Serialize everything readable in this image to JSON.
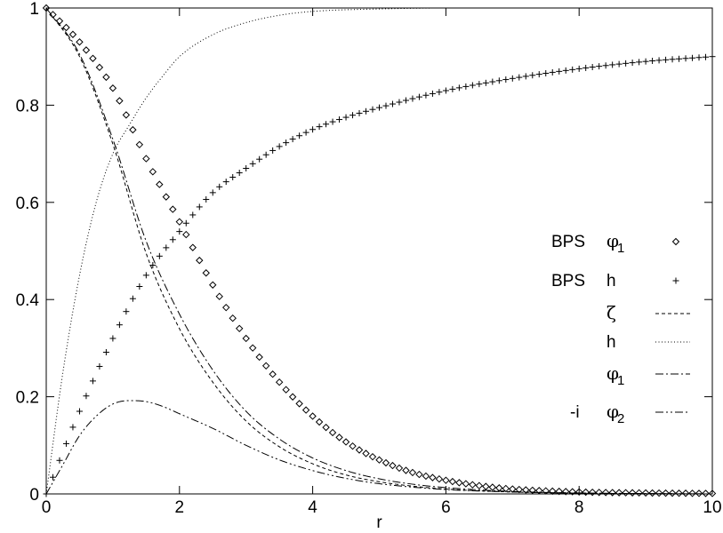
{
  "chart_data": {
    "type": "line",
    "title": "",
    "xlabel": "r",
    "ylabel": "",
    "xlim": [
      0,
      10
    ],
    "ylim": [
      0,
      1
    ],
    "grid": false,
    "legend_position": "right",
    "x_ticks": [
      "0",
      "2",
      "4",
      "6",
      "8",
      "10"
    ],
    "y_ticks": [
      "0",
      "0.2",
      "0.4",
      "0.6",
      "0.8",
      "1"
    ],
    "series": [
      {
        "name": "BPS φ1",
        "legend_prefix": "BPS",
        "legend_symbol": "φ",
        "legend_sub": "1",
        "style": "diamond",
        "x": [
          0.0,
          0.5,
          1.0,
          1.5,
          2.0,
          2.5,
          3.0,
          3.5,
          4.0,
          4.5,
          5.0,
          5.5,
          6.0,
          6.5,
          7.0,
          8.0,
          9.0,
          10.0
        ],
        "y": [
          1.0,
          0.93,
          0.835,
          0.69,
          0.56,
          0.43,
          0.32,
          0.23,
          0.16,
          0.107,
          0.07,
          0.044,
          0.028,
          0.017,
          0.01,
          0.004,
          0.002,
          0.001
        ]
      },
      {
        "name": "BPS h",
        "legend_prefix": "BPS",
        "legend_symbol": "h",
        "legend_sub": "",
        "style": "plus",
        "x": [
          0.0,
          0.5,
          1.0,
          1.5,
          2.0,
          2.5,
          3.0,
          3.5,
          4.0,
          4.5,
          5.0,
          6.0,
          7.0,
          8.0,
          9.0,
          10.0
        ],
        "y": [
          0.0,
          0.17,
          0.32,
          0.45,
          0.54,
          0.62,
          0.67,
          0.715,
          0.75,
          0.775,
          0.795,
          0.83,
          0.855,
          0.875,
          0.89,
          0.9
        ]
      },
      {
        "name": "ζ",
        "legend_prefix": "",
        "legend_symbol": "ζ",
        "legend_sub": "",
        "style": "dash",
        "x": [
          0.0,
          0.5,
          1.0,
          1.5,
          2.0,
          2.5,
          3.0,
          3.5,
          4.0,
          4.5,
          5.0,
          5.5,
          6.0,
          7.0,
          8.0,
          10.0
        ],
        "y": [
          1.0,
          0.9,
          0.72,
          0.495,
          0.34,
          0.23,
          0.15,
          0.097,
          0.062,
          0.039,
          0.025,
          0.016,
          0.01,
          0.004,
          0.0015,
          0.0
        ]
      },
      {
        "name": "h",
        "legend_prefix": "",
        "legend_symbol": "h",
        "legend_sub": "",
        "style": "dot",
        "x": [
          0.0,
          0.25,
          0.5,
          0.75,
          1.0,
          1.25,
          1.5,
          1.75,
          2.0,
          2.5,
          3.0,
          3.5,
          4.0,
          5.0,
          6.0,
          10.0
        ],
        "y": [
          0.0,
          0.25,
          0.45,
          0.6,
          0.7,
          0.76,
          0.815,
          0.86,
          0.9,
          0.945,
          0.97,
          0.985,
          0.993,
          0.998,
          1.0,
          1.0
        ]
      },
      {
        "name": "φ1",
        "legend_prefix": "",
        "legend_symbol": "φ",
        "legend_sub": "1",
        "style": "dashdot",
        "x": [
          0.0,
          0.5,
          1.0,
          1.5,
          2.0,
          2.5,
          3.0,
          3.5,
          4.0,
          4.5,
          5.0,
          5.5,
          6.0,
          7.0,
          8.0,
          10.0
        ],
        "y": [
          1.0,
          0.905,
          0.73,
          0.52,
          0.37,
          0.255,
          0.17,
          0.113,
          0.074,
          0.048,
          0.031,
          0.02,
          0.013,
          0.005,
          0.002,
          0.0
        ]
      },
      {
        "name": "-i φ2",
        "legend_prefix": "-i",
        "legend_symbol": "φ",
        "legend_sub": "2",
        "style": "dashdotdot",
        "x": [
          0.0,
          0.25,
          0.5,
          0.75,
          1.0,
          1.25,
          1.5,
          1.75,
          2.0,
          2.5,
          3.0,
          3.5,
          4.0,
          4.5,
          5.0,
          6.0,
          7.0,
          8.0,
          10.0
        ],
        "y": [
          0.0,
          0.06,
          0.12,
          0.16,
          0.185,
          0.192,
          0.19,
          0.18,
          0.165,
          0.135,
          0.1,
          0.07,
          0.048,
          0.032,
          0.021,
          0.009,
          0.004,
          0.0015,
          0.0
        ]
      }
    ]
  }
}
